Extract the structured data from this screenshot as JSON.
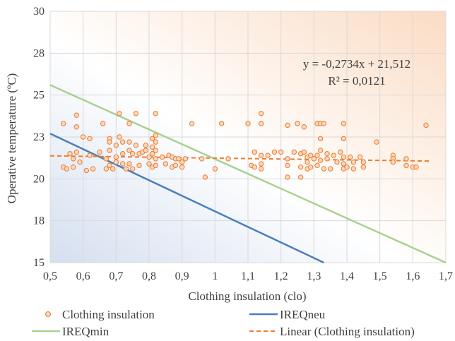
{
  "chart_data": {
    "type": "scatter",
    "xlabel": "Clothing insulation (clo)",
    "ylabel": "Operative temperature (ºC)",
    "xlim": [
      0.5,
      1.7
    ],
    "ylim": [
      15,
      30
    ],
    "x_ticks": [
      "0,5",
      "0,6",
      "0,7",
      "0,8",
      "0,9",
      "1",
      "1,1",
      "1,2",
      "1,3",
      "1,4",
      "1,5",
      "1,6",
      "1,7"
    ],
    "y_ticks": [
      "15",
      "18",
      "20",
      "23",
      "25",
      "28",
      "30"
    ],
    "y_tick_values": [
      15,
      17.5,
      20,
      22.5,
      25,
      27.5,
      30
    ],
    "grid": true,
    "background": {
      "left_color": "#dfe6f2",
      "right_color": "#fbe0cc"
    },
    "annotation": {
      "equation": "y = -0,2734x + 21,512",
      "r_squared": "R² = 0,0121"
    },
    "series": [
      {
        "name": "Clothing insulation",
        "kind": "scatter",
        "color": "#ed7d31",
        "fill": "#f9d7bd",
        "points": [
          [
            0.54,
            23.3
          ],
          [
            0.54,
            20.7
          ],
          [
            0.55,
            20.6
          ],
          [
            0.56,
            21.5
          ],
          [
            0.57,
            20.7
          ],
          [
            0.57,
            21.2
          ],
          [
            0.58,
            23.8
          ],
          [
            0.58,
            23.1
          ],
          [
            0.58,
            21.6
          ],
          [
            0.59,
            21.0
          ],
          [
            0.6,
            22.5
          ],
          [
            0.61,
            20.5
          ],
          [
            0.62,
            22.4
          ],
          [
            0.62,
            21.4
          ],
          [
            0.63,
            20.6
          ],
          [
            0.65,
            21.6
          ],
          [
            0.66,
            23.3
          ],
          [
            0.67,
            20.6
          ],
          [
            0.67,
            21.2
          ],
          [
            0.68,
            22.4
          ],
          [
            0.68,
            22.2
          ],
          [
            0.68,
            21.7
          ],
          [
            0.68,
            20.8
          ],
          [
            0.69,
            20.6
          ],
          [
            0.7,
            22.0
          ],
          [
            0.7,
            21.3
          ],
          [
            0.7,
            21.0
          ],
          [
            0.71,
            23.9
          ],
          [
            0.71,
            22.5
          ],
          [
            0.72,
            22.2
          ],
          [
            0.72,
            21.5
          ],
          [
            0.72,
            20.9
          ],
          [
            0.73,
            20.6
          ],
          [
            0.74,
            23.3
          ],
          [
            0.74,
            22.2
          ],
          [
            0.74,
            21.7
          ],
          [
            0.74,
            20.9
          ],
          [
            0.75,
            20.6
          ],
          [
            0.75,
            21.5
          ],
          [
            0.76,
            23.9
          ],
          [
            0.76,
            22.0
          ],
          [
            0.77,
            21.5
          ],
          [
            0.77,
            20.8
          ],
          [
            0.78,
            21.6
          ],
          [
            0.79,
            22.0
          ],
          [
            0.79,
            21.7
          ],
          [
            0.8,
            21.3
          ],
          [
            0.8,
            20.9
          ],
          [
            0.81,
            22.4
          ],
          [
            0.81,
            21.9
          ],
          [
            0.81,
            21.5
          ],
          [
            0.81,
            20.7
          ],
          [
            0.82,
            23.9
          ],
          [
            0.82,
            22.6
          ],
          [
            0.82,
            22.2
          ],
          [
            0.82,
            21.7
          ],
          [
            0.82,
            21.2
          ],
          [
            0.82,
            20.8
          ],
          [
            0.84,
            21.3
          ],
          [
            0.85,
            20.9
          ],
          [
            0.86,
            21.4
          ],
          [
            0.87,
            21.3
          ],
          [
            0.87,
            20.7
          ],
          [
            0.88,
            21.2
          ],
          [
            0.88,
            20.8
          ],
          [
            0.89,
            21.2
          ],
          [
            0.9,
            20.7
          ],
          [
            0.9,
            21.0
          ],
          [
            0.91,
            21.2
          ],
          [
            0.93,
            23.3
          ],
          [
            0.96,
            21.2
          ],
          [
            0.97,
            20.1
          ],
          [
            1.0,
            20.6
          ],
          [
            1.02,
            23.3
          ],
          [
            1.04,
            21.2
          ],
          [
            1.1,
            23.3
          ],
          [
            1.11,
            20.8
          ],
          [
            1.12,
            21.6
          ],
          [
            1.12,
            20.7
          ],
          [
            1.14,
            23.9
          ],
          [
            1.14,
            23.3
          ],
          [
            1.14,
            21.4
          ],
          [
            1.14,
            20.9
          ],
          [
            1.14,
            20.6
          ],
          [
            1.16,
            21.4
          ],
          [
            1.18,
            21.6
          ],
          [
            1.2,
            21.6
          ],
          [
            1.22,
            23.2
          ],
          [
            1.22,
            21.2
          ],
          [
            1.22,
            20.8
          ],
          [
            1.22,
            20.1
          ],
          [
            1.24,
            21.6
          ],
          [
            1.25,
            23.3
          ],
          [
            1.26,
            21.5
          ],
          [
            1.26,
            20.7
          ],
          [
            1.26,
            20.1
          ],
          [
            1.27,
            23.1
          ],
          [
            1.27,
            21.6
          ],
          [
            1.28,
            21.3
          ],
          [
            1.28,
            21.0
          ],
          [
            1.28,
            20.6
          ],
          [
            1.29,
            21.4
          ],
          [
            1.29,
            20.7
          ],
          [
            1.3,
            21.2
          ],
          [
            1.31,
            23.3
          ],
          [
            1.31,
            21.4
          ],
          [
            1.31,
            20.8
          ],
          [
            1.32,
            23.3
          ],
          [
            1.32,
            22.4
          ],
          [
            1.32,
            21.7
          ],
          [
            1.32,
            21.1
          ],
          [
            1.33,
            23.3
          ],
          [
            1.33,
            20.6
          ],
          [
            1.34,
            21.5
          ],
          [
            1.34,
            21.2
          ],
          [
            1.35,
            20.6
          ],
          [
            1.36,
            21.4
          ],
          [
            1.37,
            21.0
          ],
          [
            1.38,
            21.6
          ],
          [
            1.39,
            23.3
          ],
          [
            1.39,
            22.4
          ],
          [
            1.39,
            21.3
          ],
          [
            1.39,
            20.9
          ],
          [
            1.39,
            20.6
          ],
          [
            1.4,
            20.7
          ],
          [
            1.41,
            21.3
          ],
          [
            1.42,
            21.0
          ],
          [
            1.42,
            20.6
          ],
          [
            1.44,
            21.3
          ],
          [
            1.45,
            21.0
          ],
          [
            1.45,
            20.7
          ],
          [
            1.49,
            22.2
          ],
          [
            1.54,
            21.4
          ],
          [
            1.54,
            21.2
          ],
          [
            1.54,
            21.0
          ],
          [
            1.58,
            21.2
          ],
          [
            1.58,
            20.8
          ],
          [
            1.6,
            20.7
          ],
          [
            1.61,
            20.7
          ],
          [
            1.64,
            23.2
          ]
        ]
      },
      {
        "name": "IREQneu",
        "kind": "line",
        "color": "#4a7ebb",
        "x": [
          0.5,
          1.33
        ],
        "y": [
          22.7,
          15
        ]
      },
      {
        "name": "IREQmin",
        "kind": "line",
        "color": "#a9d18e",
        "x": [
          0.5,
          1.7
        ],
        "y": [
          25.6,
          15
        ]
      },
      {
        "name": "Linear (Clothing insulation)",
        "kind": "trendline",
        "color": "#ed7d31",
        "x": [
          0.5,
          1.65
        ],
        "slope": -0.2734,
        "intercept": 21.512
      }
    ],
    "legend": {
      "placement": "bottom",
      "items": [
        {
          "label": "Clothing insulation",
          "marker": "circle"
        },
        {
          "label": "IREQneu",
          "marker": "line"
        },
        {
          "label": "IREQmin",
          "marker": "line"
        },
        {
          "label": "Linear (Clothing insulation)",
          "marker": "dash"
        }
      ]
    }
  }
}
